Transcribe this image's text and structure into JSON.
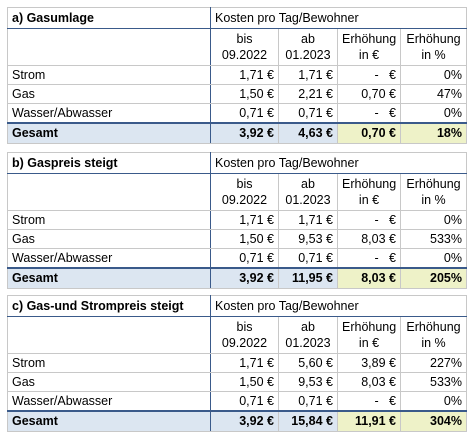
{
  "tables": [
    {
      "title": "a) Gasumlage",
      "header": "Kosten pro Tag/Bewohner",
      "columns": [
        [
          "bis",
          "09.2022"
        ],
        [
          "ab",
          "01.2023"
        ],
        [
          "Erhöhung",
          "in €"
        ],
        [
          "Erhöhung",
          "in %"
        ]
      ],
      "rows": [
        [
          "Strom",
          "1,71 €",
          "1,71 €",
          "-   €",
          "0%"
        ],
        [
          "Gas",
          "1,50 €",
          "2,21 €",
          "0,70 €",
          "47%"
        ],
        [
          "Wasser/Abwasser",
          "0,71 €",
          "0,71 €",
          "-   €",
          "0%"
        ]
      ],
      "total": [
        "Gesamt",
        "3,92 €",
        "4,63 €",
        "0,70 €",
        "18%"
      ]
    },
    {
      "title": "b) Gaspreis steigt",
      "header": "Kosten pro Tag/Bewohner",
      "columns": [
        [
          "bis",
          "09.2022"
        ],
        [
          "ab",
          "01.2023"
        ],
        [
          "Erhöhung",
          "in €"
        ],
        [
          "Erhöhung",
          "in %"
        ]
      ],
      "rows": [
        [
          "Strom",
          "1,71 €",
          "1,71 €",
          "-   €",
          "0%"
        ],
        [
          "Gas",
          "1,50 €",
          "9,53 €",
          "8,03 €",
          "533%"
        ],
        [
          "Wasser/Abwasser",
          "0,71 €",
          "0,71 €",
          "-   €",
          "0%"
        ]
      ],
      "total": [
        "Gesamt",
        "3,92 €",
        "11,95 €",
        "8,03 €",
        "205%"
      ]
    },
    {
      "title": "c) Gas-und Strompreis steigt",
      "header": "Kosten pro Tag/Bewohner",
      "columns": [
        [
          "bis",
          "09.2022"
        ],
        [
          "ab",
          "01.2023"
        ],
        [
          "Erhöhung",
          "in €"
        ],
        [
          "Erhöhung",
          "in %"
        ]
      ],
      "rows": [
        [
          "Strom",
          "1,71 €",
          "5,60 €",
          "3,89 €",
          "227%"
        ],
        [
          "Gas",
          "1,50 €",
          "9,53 €",
          "8,03 €",
          "533%"
        ],
        [
          "Wasser/Abwasser",
          "0,71 €",
          "0,71 €",
          "-   €",
          "0%"
        ]
      ],
      "total": [
        "Gesamt",
        "3,92 €",
        "15,84 €",
        "11,91 €",
        "304%"
      ]
    }
  ]
}
